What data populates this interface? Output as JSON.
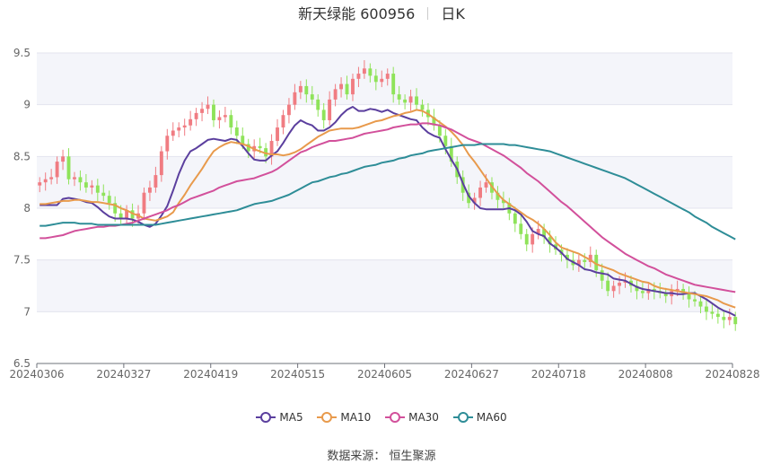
{
  "header": {
    "stock": "新天绿能 600956",
    "period": "日K"
  },
  "source": "数据来源：  恒生聚源",
  "chart_data": {
    "type": "candlestick",
    "y_axis": {
      "min": 6.5,
      "max": 9.5,
      "ticks": [
        "6.5",
        "7",
        "7.5",
        "8",
        "8.5",
        "9",
        "9.5"
      ]
    },
    "x_tick_labels": [
      "20240306",
      "20240327",
      "20240419",
      "20240515",
      "20240605",
      "20240627",
      "20240718",
      "20240808",
      "20240828"
    ],
    "trading_days": 120,
    "x_tick_index": [
      0,
      15,
      30,
      45,
      60,
      75,
      90,
      105,
      120
    ],
    "up_color": "#f07c82",
    "down_color": "#8fe35a",
    "close": [
      8.25,
      8.28,
      8.3,
      8.45,
      8.5,
      8.28,
      8.3,
      8.25,
      8.2,
      8.22,
      8.15,
      8.12,
      8.05,
      7.95,
      7.9,
      7.98,
      7.9,
      7.95,
      8.15,
      8.2,
      8.32,
      8.55,
      8.7,
      8.75,
      8.78,
      8.8,
      8.86,
      8.92,
      8.96,
      9.0,
      8.85,
      8.88,
      8.9,
      8.78,
      8.7,
      8.62,
      8.55,
      8.6,
      8.58,
      8.5,
      8.65,
      8.78,
      8.9,
      9.0,
      9.12,
      9.18,
      9.1,
      9.05,
      8.95,
      8.85,
      9.05,
      9.15,
      9.2,
      9.1,
      9.25,
      9.3,
      9.35,
      9.28,
      9.22,
      9.25,
      9.3,
      9.1,
      9.05,
      9.02,
      9.08,
      9.0,
      8.95,
      8.88,
      8.8,
      8.7,
      8.6,
      8.45,
      8.3,
      8.15,
      8.05,
      8.1,
      8.2,
      8.25,
      8.15,
      8.08,
      8.05,
      7.95,
      7.85,
      7.75,
      7.65,
      7.75,
      7.8,
      7.72,
      7.65,
      7.6,
      7.55,
      7.5,
      7.45,
      7.5,
      7.48,
      7.55,
      7.4,
      7.3,
      7.2,
      7.25,
      7.28,
      7.3,
      7.25,
      7.2,
      7.18,
      7.22,
      7.2,
      7.18,
      7.15,
      7.2,
      7.22,
      7.18,
      7.12,
      7.1,
      7.05,
      7.0,
      6.98,
      6.95,
      6.92,
      6.95,
      6.88
    ],
    "series": [
      {
        "name": "MA5",
        "color": "#5b3f9e",
        "values": [
          8.03,
          8.03,
          8.03,
          8.03,
          8.09,
          8.1,
          8.09,
          8.08,
          8.06,
          8.05,
          8.01,
          7.96,
          7.92,
          7.9,
          7.9,
          7.9,
          7.89,
          7.87,
          7.84,
          7.82,
          7.85,
          7.93,
          8.02,
          8.17,
          8.33,
          8.46,
          8.55,
          8.58,
          8.62,
          8.66,
          8.67,
          8.66,
          8.65,
          8.67,
          8.66,
          8.6,
          8.53,
          8.47,
          8.46,
          8.46,
          8.51,
          8.55,
          8.63,
          8.72,
          8.8,
          8.85,
          8.82,
          8.8,
          8.75,
          8.75,
          8.78,
          8.83,
          8.9,
          8.95,
          8.98,
          8.94,
          8.94,
          8.96,
          8.95,
          8.93,
          8.95,
          8.92,
          8.9,
          8.88,
          8.86,
          8.85,
          8.78,
          8.73,
          8.7,
          8.68,
          8.57,
          8.47,
          8.38,
          8.24,
          8.12,
          8.05,
          8.0,
          7.99,
          7.99,
          7.99,
          7.99,
          8.0,
          7.98,
          7.94,
          7.87,
          7.78,
          7.75,
          7.73,
          7.66,
          7.62,
          7.57,
          7.51,
          7.48,
          7.45,
          7.41,
          7.4,
          7.38,
          7.37,
          7.36,
          7.32,
          7.31,
          7.3,
          7.27,
          7.24,
          7.22,
          7.21,
          7.2,
          7.19,
          7.18,
          7.18,
          7.17,
          7.17,
          7.18,
          7.18,
          7.15,
          7.12,
          7.08,
          7.04,
          7.01,
          6.99,
          6.96
        ]
      },
      {
        "name": "MA10",
        "color": "#e89a4c",
        "values": [
          8.04,
          8.04,
          8.05,
          8.06,
          8.07,
          8.07,
          8.08,
          8.08,
          8.07,
          8.06,
          8.06,
          8.05,
          8.04,
          8.03,
          8.0,
          7.98,
          7.95,
          7.93,
          7.9,
          7.89,
          7.88,
          7.9,
          7.92,
          7.96,
          8.05,
          8.13,
          8.22,
          8.3,
          8.38,
          8.47,
          8.55,
          8.59,
          8.62,
          8.64,
          8.63,
          8.62,
          8.6,
          8.57,
          8.55,
          8.53,
          8.52,
          8.52,
          8.51,
          8.52,
          8.54,
          8.57,
          8.61,
          8.65,
          8.69,
          8.72,
          8.75,
          8.76,
          8.77,
          8.77,
          8.77,
          8.78,
          8.8,
          8.82,
          8.84,
          8.85,
          8.87,
          8.89,
          8.9,
          8.92,
          8.93,
          8.95,
          8.94,
          8.91,
          8.87,
          8.83,
          8.79,
          8.74,
          8.68,
          8.61,
          8.52,
          8.45,
          8.37,
          8.29,
          8.21,
          8.14,
          8.08,
          8.04,
          8.0,
          7.96,
          7.92,
          7.89,
          7.85,
          7.8,
          7.74,
          7.67,
          7.62,
          7.6,
          7.58,
          7.56,
          7.53,
          7.5,
          7.46,
          7.44,
          7.42,
          7.4,
          7.37,
          7.35,
          7.33,
          7.31,
          7.29,
          7.28,
          7.25,
          7.23,
          7.22,
          7.21,
          7.2,
          7.19,
          7.18,
          7.17,
          7.16,
          7.15,
          7.13,
          7.11,
          7.08,
          7.06,
          7.04
        ]
      },
      {
        "name": "MA30",
        "color": "#d2509b",
        "values": [
          7.71,
          7.71,
          7.72,
          7.73,
          7.74,
          7.76,
          7.78,
          7.79,
          7.8,
          7.81,
          7.82,
          7.82,
          7.83,
          7.83,
          7.84,
          7.85,
          7.86,
          7.88,
          7.9,
          7.92,
          7.94,
          7.96,
          7.98,
          8.01,
          8.03,
          8.06,
          8.09,
          8.11,
          8.13,
          8.15,
          8.17,
          8.2,
          8.22,
          8.24,
          8.26,
          8.27,
          8.28,
          8.29,
          8.31,
          8.33,
          8.35,
          8.38,
          8.42,
          8.46,
          8.5,
          8.54,
          8.56,
          8.59,
          8.61,
          8.63,
          8.65,
          8.65,
          8.66,
          8.67,
          8.68,
          8.7,
          8.72,
          8.73,
          8.74,
          8.75,
          8.76,
          8.78,
          8.79,
          8.8,
          8.81,
          8.81,
          8.82,
          8.82,
          8.81,
          8.8,
          8.78,
          8.76,
          8.73,
          8.7,
          8.67,
          8.65,
          8.63,
          8.6,
          8.57,
          8.54,
          8.51,
          8.47,
          8.43,
          8.39,
          8.34,
          8.3,
          8.26,
          8.21,
          8.16,
          8.11,
          8.06,
          8.02,
          7.97,
          7.92,
          7.87,
          7.82,
          7.77,
          7.72,
          7.68,
          7.64,
          7.6,
          7.56,
          7.53,
          7.5,
          7.47,
          7.44,
          7.42,
          7.39,
          7.36,
          7.34,
          7.32,
          7.3,
          7.28,
          7.26,
          7.25,
          7.24,
          7.23,
          7.22,
          7.21,
          7.2,
          7.19
        ]
      },
      {
        "name": "MA60",
        "color": "#2e8d97",
        "values": [
          7.83,
          7.83,
          7.84,
          7.85,
          7.86,
          7.86,
          7.86,
          7.85,
          7.85,
          7.85,
          7.84,
          7.84,
          7.84,
          7.84,
          7.84,
          7.84,
          7.84,
          7.84,
          7.84,
          7.84,
          7.84,
          7.85,
          7.86,
          7.87,
          7.88,
          7.89,
          7.9,
          7.91,
          7.92,
          7.93,
          7.94,
          7.95,
          7.96,
          7.97,
          7.98,
          8.0,
          8.02,
          8.04,
          8.05,
          8.06,
          8.07,
          8.09,
          8.11,
          8.13,
          8.16,
          8.19,
          8.22,
          8.25,
          8.26,
          8.28,
          8.3,
          8.31,
          8.33,
          8.34,
          8.36,
          8.38,
          8.4,
          8.41,
          8.42,
          8.44,
          8.45,
          8.46,
          8.48,
          8.49,
          8.51,
          8.52,
          8.53,
          8.55,
          8.56,
          8.57,
          8.58,
          8.59,
          8.6,
          8.61,
          8.61,
          8.61,
          8.62,
          8.62,
          8.62,
          8.62,
          8.62,
          8.61,
          8.61,
          8.6,
          8.59,
          8.58,
          8.57,
          8.56,
          8.55,
          8.53,
          8.51,
          8.49,
          8.47,
          8.45,
          8.43,
          8.41,
          8.39,
          8.37,
          8.35,
          8.33,
          8.31,
          8.29,
          8.26,
          8.23,
          8.2,
          8.17,
          8.14,
          8.11,
          8.08,
          8.05,
          8.02,
          7.99,
          7.96,
          7.92,
          7.89,
          7.86,
          7.82,
          7.79,
          7.76,
          7.73,
          7.7
        ]
      }
    ]
  }
}
